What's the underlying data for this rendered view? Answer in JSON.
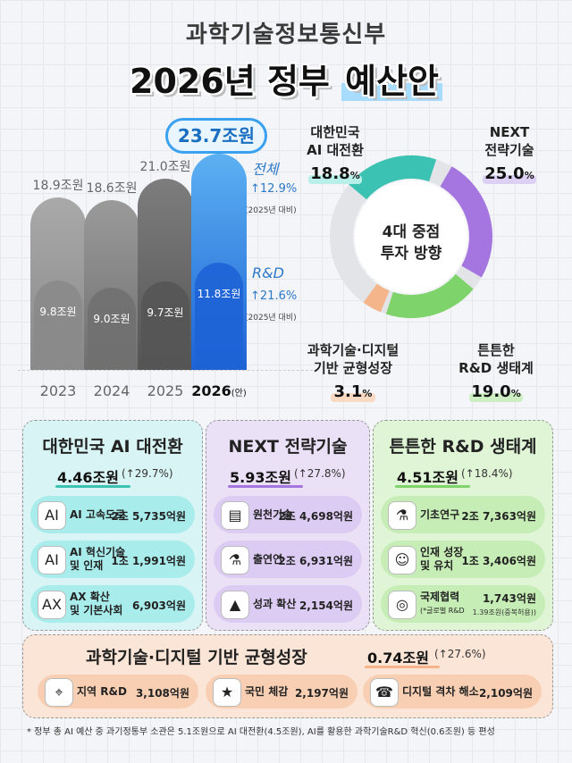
{
  "header": {
    "ministry": "과학기술정보통신부",
    "title_prefix": "2026년 정부 ",
    "title_highlight": "예산안"
  },
  "chart_data": {
    "type": "bar",
    "categories": [
      "2023",
      "2024",
      "2025",
      "2026"
    ],
    "category_suffix_last": "(안)",
    "series": [
      {
        "name": "전체",
        "values": [
          18.9,
          18.6,
          21.0,
          23.7
        ],
        "labels": [
          "18.9조원",
          "18.6조원",
          "21.0조원",
          "23.7조원"
        ]
      },
      {
        "name": "R&D",
        "values": [
          9.8,
          9.0,
          9.7,
          11.8
        ],
        "labels": [
          "9.8조원",
          "9.0조원",
          "9.7조원",
          "11.8조원"
        ]
      }
    ],
    "growth": [
      {
        "name": "전체",
        "value": "12.9%",
        "note": "(2025년 대비)"
      },
      {
        "name": "R&D",
        "value": "21.6%",
        "note": "(2025년 대비)"
      }
    ]
  },
  "donut": {
    "center_line1": "4대 중점",
    "center_line2": "투자 방향",
    "areas": [
      {
        "line1": "대한민국",
        "line2": "AI 대전환",
        "pct": "18.8",
        "color": "#3cc2b2"
      },
      {
        "line1": "NEXT",
        "line2": "전략기술",
        "pct": "25.0",
        "color": "#a576e0"
      },
      {
        "line1": "튼튼한",
        "line2": "R&D 생태계",
        "pct": "19.0",
        "color": "#7ed36a"
      },
      {
        "line1": "과학기술·디지털",
        "line2": "기반 균형성장",
        "pct": "3.1",
        "color": "#f4b58b"
      }
    ],
    "unit": "%"
  },
  "panels": [
    {
      "title": "대한민국 AI 대전환",
      "amount": "4.46조원",
      "growth": "(↑29.7%)",
      "items": [
        {
          "name": "AI 고속도로",
          "name2": "",
          "amount": "2조 5,735억원",
          "icon": "AI"
        },
        {
          "name": "AI 혁신기술",
          "name2": "및 인재",
          "amount": "1조 1,991억원",
          "icon": "AI"
        },
        {
          "name": "AX 확산",
          "name2": "및 기본사회",
          "amount": "6,903억원",
          "icon": "AX"
        }
      ]
    },
    {
      "title": "NEXT 전략기술",
      "amount": "5.93조원",
      "growth": "(↑27.8%)",
      "items": [
        {
          "name": "원천기술",
          "name2": "",
          "amount": "2조 4,698억원",
          "icon": "▤"
        },
        {
          "name": "출연연",
          "name2": "",
          "amount": "2조 6,931억원",
          "icon": "⚗"
        },
        {
          "name": "성과 확산",
          "name2": "",
          "amount": "2,154억원",
          "icon": "▲"
        }
      ]
    },
    {
      "title": "튼튼한 R&D 생태계",
      "amount": "4.51조원",
      "growth": "(↑18.4%)",
      "items": [
        {
          "name": "기초연구",
          "name2": "",
          "amount": "2조 7,363억원",
          "note": "",
          "icon": "⚗"
        },
        {
          "name": "인재 성장",
          "name2": "및 유치",
          "amount": "1조 3,406억원",
          "note": "",
          "icon": "☺"
        },
        {
          "name": "국제협력",
          "name2": "(*글로벌 R&D",
          "amount": "1,743억원",
          "note": "1.39조원(중복허용))",
          "icon": "◎"
        }
      ]
    }
  ],
  "bottom": {
    "title": "과학기술·디지털 기반 균형성장",
    "amount": "0.74조원",
    "growth": "(↑27.6%)",
    "items": [
      {
        "name": "지역 R&D",
        "amount": "3,108억원",
        "icon": "⌖"
      },
      {
        "name": "국민 체감",
        "amount": "2,197억원",
        "icon": "★"
      },
      {
        "name": "디지털 격차 해소",
        "amount": "2,109억원",
        "icon": "☎"
      }
    ]
  },
  "footnote": "* 정부 총 AI 예산 중 과기정통부 소관은 5.1조원으로 AI 대전환(4.5조원), AI를 활용한 과학기술R&D 혁신(0.6조원) 등 편성"
}
